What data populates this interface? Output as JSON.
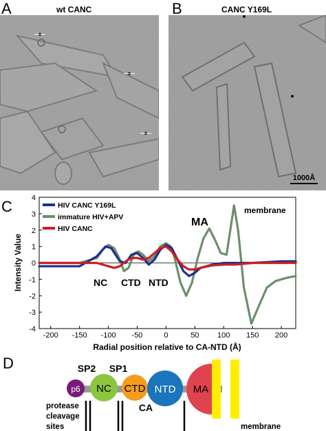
{
  "panels": {
    "A": {
      "letter": "A",
      "title": "wt CANC"
    },
    "B": {
      "letter": "B",
      "title": "CANC Y169L",
      "scale_bar": "1000Å"
    },
    "C": {
      "letter": "C"
    },
    "D": {
      "letter": "D"
    }
  },
  "chart_data": {
    "type": "line",
    "xlabel": "Radial position relative to CA-NTD (Å)",
    "ylabel": "Intensity Value",
    "xlim": [
      -220,
      225
    ],
    "ylim": [
      -4,
      4
    ],
    "xticks": [
      "-200",
      "-150",
      "-100",
      "-50",
      "0",
      "50",
      "100",
      "150",
      "200"
    ],
    "yticks": [
      "4",
      "3",
      "2",
      "1",
      "0",
      "-1",
      "-2",
      "-3",
      "-4"
    ],
    "legend": "top-left",
    "series": [
      {
        "name": "HIV CANC Y169L",
        "color": "#1f2f8f",
        "x": [
          -220,
          -150,
          -120,
          -105,
          -95,
          -80,
          -70,
          -60,
          -50,
          -40,
          -30,
          -20,
          -10,
          0,
          10,
          20,
          30,
          40,
          50,
          60,
          80,
          100,
          120,
          150,
          200,
          225
        ],
        "y": [
          -0.2,
          -0.2,
          0.4,
          1.0,
          0.9,
          0.1,
          0.0,
          0.5,
          0.6,
          0.3,
          -0.1,
          0.2,
          0.8,
          1.1,
          0.9,
          0.2,
          -0.5,
          -0.8,
          -0.6,
          -0.3,
          -0.1,
          0.0,
          0.0,
          0.0,
          0.1,
          0.1
        ]
      },
      {
        "name": "immature HIV+APV",
        "color": "#6b8f6b",
        "x": [
          -220,
          -150,
          -120,
          -110,
          -100,
          -90,
          -80,
          -73,
          -65,
          -55,
          -48,
          -40,
          -30,
          -20,
          -10,
          0,
          8,
          15,
          25,
          35,
          45,
          55,
          65,
          75,
          85,
          95,
          105,
          118,
          125,
          135,
          148,
          160,
          175,
          190,
          210,
          225
        ],
        "y": [
          0.0,
          0.0,
          0.3,
          0.8,
          1.1,
          0.9,
          0.2,
          -0.5,
          -0.3,
          0.6,
          0.7,
          0.5,
          0.1,
          0.4,
          1.0,
          1.2,
          1.0,
          0.3,
          -1.2,
          -2.0,
          -1.2,
          0.3,
          1.5,
          2.1,
          1.4,
          0.6,
          0.5,
          3.5,
          2.0,
          -1.5,
          -3.7,
          -2.7,
          -1.5,
          -1.1,
          -0.9,
          -0.8
        ]
      },
      {
        "name": "HIV CANC",
        "color": "#cc1f1f",
        "x": [
          -220,
          -150,
          -120,
          -100,
          -90,
          -80,
          -70,
          -60,
          -50,
          -40,
          -30,
          -20,
          -10,
          0,
          10,
          20,
          30,
          40,
          50,
          60,
          80,
          100,
          120,
          150,
          200,
          225
        ],
        "y": [
          0.0,
          0.0,
          0.0,
          -0.2,
          -0.3,
          -0.2,
          0.1,
          0.3,
          0.3,
          0.2,
          0.3,
          0.6,
          0.9,
          1.0,
          0.7,
          0.2,
          -0.2,
          -0.4,
          -0.4,
          -0.3,
          -0.15,
          -0.1,
          -0.1,
          0.0,
          0.0,
          0.0
        ]
      }
    ],
    "annotations": [
      "NC",
      "CTD",
      "NTD",
      "MA",
      "membrane"
    ]
  },
  "diagram": {
    "domains": [
      {
        "label": "p6",
        "color": "#7b1a7b"
      },
      {
        "label": "NC",
        "color": "#8cc63f"
      },
      {
        "label": "CTD",
        "color": "#f39c1e"
      },
      {
        "label": "NTD",
        "color": "#1b75bb"
      },
      {
        "label": "MA",
        "color": "#e0424f"
      }
    ],
    "labels": {
      "sp2": "SP2",
      "sp1": "SP1",
      "ca": "CA",
      "protease": "protease",
      "cleavage": "cleavage",
      "sites": "sites",
      "membrane": "membrane"
    },
    "membrane_color": "#ffee00"
  }
}
